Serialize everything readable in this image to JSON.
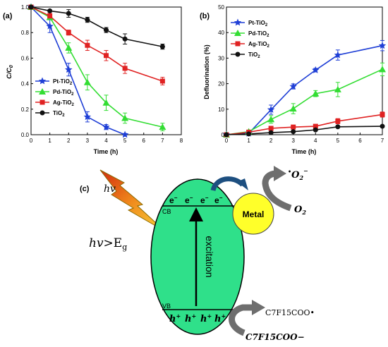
{
  "chart_data": [
    {
      "panel": "(a)",
      "type": "line",
      "xlabel": "Time (h)",
      "ylabel": "C/C0",
      "xlim": [
        0,
        8
      ],
      "ylim": [
        0,
        1.0
      ],
      "xticks": [
        "0",
        "1",
        "2",
        "3",
        "4",
        "5",
        "6",
        "7",
        "8"
      ],
      "yticks": [
        "0.0",
        "0.2",
        "0.4",
        "0.6",
        "0.8",
        "1.0"
      ],
      "legend_position": "bottom-left",
      "series": [
        {
          "name": "Pt-TiO2",
          "color": "#1f3fd6",
          "marker": "star",
          "x": [
            0,
            1,
            2,
            3,
            4,
            5
          ],
          "y": [
            1.0,
            0.85,
            0.51,
            0.14,
            0.06,
            0.0
          ],
          "err": [
            0,
            0.05,
            0.05,
            0.04,
            0.02,
            0.01
          ]
        },
        {
          "name": "Pd-TiO2",
          "color": "#33dd33",
          "marker": "triangle",
          "x": [
            0,
            1,
            2,
            3,
            4,
            5,
            7
          ],
          "y": [
            1.0,
            0.92,
            0.68,
            0.41,
            0.25,
            0.13,
            0.06
          ],
          "err": [
            0,
            0.02,
            0.04,
            0.06,
            0.06,
            0.04,
            0.03
          ]
        },
        {
          "name": "Ag-TiO2",
          "color": "#e02222",
          "marker": "square",
          "x": [
            0,
            1,
            2,
            3,
            4,
            5,
            7
          ],
          "y": [
            1.0,
            0.93,
            0.8,
            0.7,
            0.62,
            0.52,
            0.42
          ],
          "err": [
            0,
            0.02,
            0.02,
            0.04,
            0.04,
            0.04,
            0.03
          ]
        },
        {
          "name": "TiO2",
          "color": "#111111",
          "marker": "circle",
          "x": [
            0,
            1,
            2,
            3,
            4,
            5,
            7
          ],
          "y": [
            1.0,
            0.97,
            0.95,
            0.9,
            0.82,
            0.75,
            0.69
          ],
          "err": [
            0,
            0.01,
            0.03,
            0.02,
            0.02,
            0.04,
            0.02
          ]
        }
      ]
    },
    {
      "panel": "(b)",
      "type": "line",
      "xlabel": "Time (h)",
      "ylabel": "Defluorination (%)",
      "xlim": [
        0,
        7
      ],
      "ylim": [
        0,
        50
      ],
      "xticks": [
        "0",
        "1",
        "2",
        "3",
        "4",
        "5",
        "6",
        "7"
      ],
      "yticks": [
        "0",
        "10",
        "20",
        "30",
        "40",
        "50"
      ],
      "legend_position": "top-left",
      "series": [
        {
          "name": "Pt-TiO2",
          "color": "#1f3fd6",
          "marker": "star",
          "x": [
            0,
            1,
            2,
            3,
            4,
            5,
            7
          ],
          "y": [
            0,
            0.5,
            9.8,
            18.9,
            25.3,
            31.2,
            34.9
          ],
          "err": [
            0,
            0.3,
            1.8,
            1.0,
            0.7,
            2.0,
            2.0
          ]
        },
        {
          "name": "Pd-TiO2",
          "color": "#33dd33",
          "marker": "triangle",
          "x": [
            0,
            1,
            2,
            3,
            4,
            5,
            7
          ],
          "y": [
            0,
            1.2,
            6.0,
            10.2,
            16.1,
            17.7,
            25.6
          ],
          "err": [
            0,
            0.5,
            1.5,
            2.0,
            1.2,
            2.8,
            2.5
          ]
        },
        {
          "name": "Ag-TiO2",
          "color": "#e02222",
          "marker": "square",
          "x": [
            0,
            1,
            2,
            3,
            4,
            5,
            7
          ],
          "y": [
            0,
            1.0,
            2.5,
            3.0,
            3.3,
            5.3,
            7.9
          ],
          "err": [
            0,
            0.3,
            0.4,
            0.5,
            0.4,
            1.0,
            1.0
          ]
        },
        {
          "name": "TiO2",
          "color": "#111111",
          "marker": "circle",
          "x": [
            0,
            1,
            2,
            3,
            4,
            5,
            7
          ],
          "y": [
            0,
            0.3,
            0.8,
            1.2,
            1.9,
            3.1,
            3.3
          ],
          "err": [
            0,
            0.1,
            0.2,
            0.3,
            0.3,
            0.3,
            0.4
          ]
        }
      ]
    }
  ],
  "diagram": {
    "panel_label": "(c)",
    "hv": "hv",
    "hv_eg_prefix": "hv>",
    "hv_eg_main": "E",
    "hv_eg_sub": "g",
    "cb": "CB",
    "vb": "VB",
    "electron": "e",
    "electron_sup": "−",
    "hole": "h",
    "hole_sup": "+",
    "excitation": "excitation",
    "metal": "Metal",
    "o2": "O",
    "o2_sub": "2",
    "superoxide_dot": "•",
    "superoxide": "O",
    "superoxide_sub": "2",
    "superoxide_sup": "−",
    "product_radical": "C7F15COO•",
    "reactant": "C7F15COO−"
  }
}
